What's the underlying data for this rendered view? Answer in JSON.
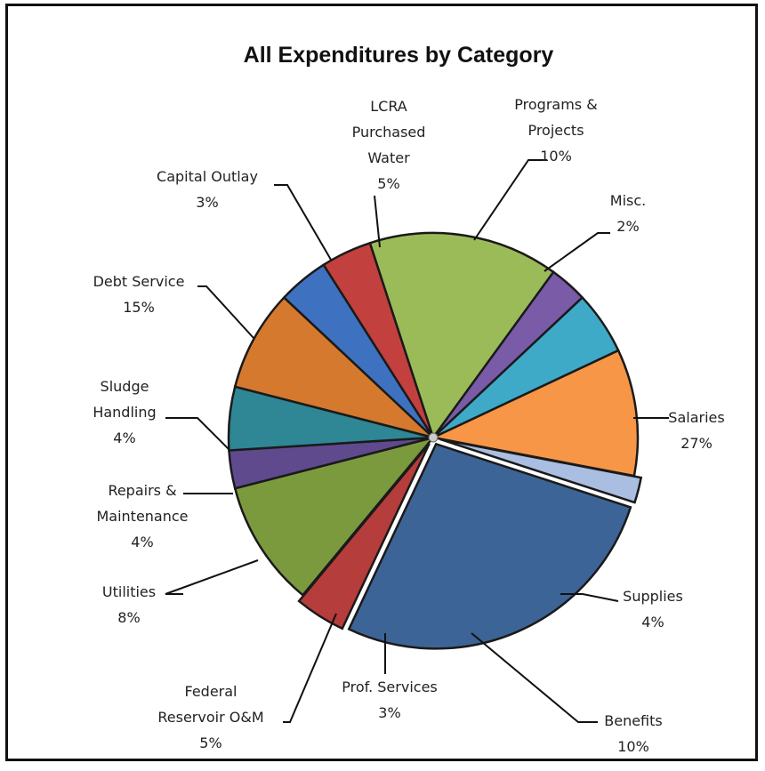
{
  "chart_data": {
    "type": "pie",
    "title": "All Expenditures by Category",
    "slices": [
      {
        "name": "Salaries",
        "pct_label": "27%",
        "value": 27,
        "color": "#3D6496"
      },
      {
        "name": "Supplies",
        "pct_label": "4%",
        "value": 4,
        "color": "#B53D3B"
      },
      {
        "name": "Benefits",
        "pct_label": "10%",
        "value": 10,
        "color": "#7B9A3E"
      },
      {
        "name": "Prof. Services",
        "pct_label": "3%",
        "value": 3,
        "color": "#5E4A8C"
      },
      {
        "name": "Federal Reservoir O&M",
        "pct_label": "5%",
        "value": 5,
        "color": "#2F8694"
      },
      {
        "name": "Utilities",
        "pct_label": "8%",
        "value": 8,
        "color": "#D4792E"
      },
      {
        "name": "Repairs & Maintenance",
        "pct_label": "4%",
        "value": 4,
        "color": "#3E72C0"
      },
      {
        "name": "Sludge Handling",
        "pct_label": "4%",
        "value": 4,
        "color": "#C2403D"
      },
      {
        "name": "Debt Service",
        "pct_label": "15%",
        "value": 15,
        "color": "#9BBB59"
      },
      {
        "name": "Capital Outlay",
        "pct_label": "3%",
        "value": 3,
        "color": "#7A5BA8"
      },
      {
        "name": "LCRA Purchased Water",
        "pct_label": "5%",
        "value": 5,
        "color": "#3FA9C8"
      },
      {
        "name": "Programs & Projects",
        "pct_label": "10%",
        "value": 10,
        "color": "#F79646"
      },
      {
        "name": "Misc.",
        "pct_label": "2%",
        "value": 2,
        "color": "#A9BEE0"
      }
    ],
    "label_lines": [
      [
        "Salaries",
        "27%"
      ],
      [
        "Supplies",
        "4%"
      ],
      [
        "Benefits",
        "10%"
      ],
      [
        "Prof. Services",
        "3%"
      ],
      [
        "Federal",
        "Reservoir O&M",
        "5%"
      ],
      [
        "Utilities",
        "8%"
      ],
      [
        "Repairs &",
        "Maintenance",
        "4%"
      ],
      [
        "Sludge",
        "Handling",
        "4%"
      ],
      [
        "Debt Service",
        "15%"
      ],
      [
        "Capital Outlay",
        "3%"
      ],
      [
        "LCRA",
        "Purchased",
        "Water",
        "5%"
      ],
      [
        "Programs &",
        "Projects",
        "10%"
      ],
      [
        "Misc.",
        "2%"
      ]
    ],
    "start_angle_deg": 18,
    "direction": "clockwise",
    "legend": "none",
    "data_labels": "outside with leader lines"
  }
}
